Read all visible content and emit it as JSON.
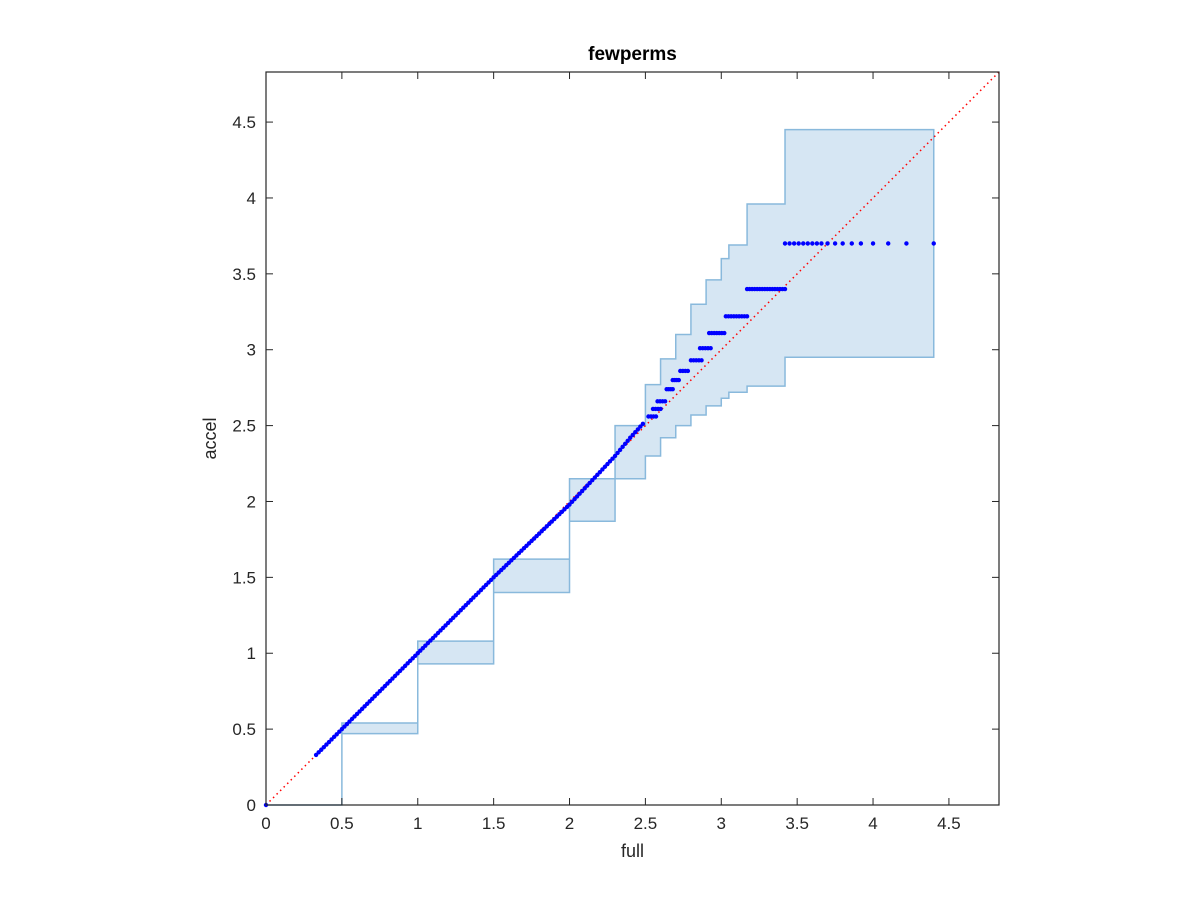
{
  "chart_data": {
    "type": "scatter",
    "title": "fewperms",
    "xlabel": "full",
    "ylabel": "accel",
    "xlim": [
      0,
      4.83
    ],
    "ylim": [
      0,
      4.83
    ],
    "xticks": [
      0,
      0.5,
      1,
      1.5,
      2,
      2.5,
      3,
      3.5,
      4,
      4.5
    ],
    "yticks": [
      0,
      0.5,
      1,
      1.5,
      2,
      2.5,
      3,
      3.5,
      4,
      4.5
    ],
    "xtick_labels": [
      "0",
      "0.5",
      "1",
      "1.5",
      "2",
      "2.5",
      "3",
      "3.5",
      "4",
      "4.5"
    ],
    "ytick_labels": [
      "0",
      "0.5",
      "1",
      "1.5",
      "2",
      "2.5",
      "3",
      "3.5",
      "4",
      "4.5"
    ],
    "grid": false,
    "box": true,
    "colors": {
      "points": "#0000ff",
      "reference_line": "#ff0000",
      "band_fill": "#d6e6f3",
      "band_edge": "#89b9dc",
      "axes": "#262626"
    },
    "reference_line": {
      "x": [
        0,
        4.83
      ],
      "y": [
        0,
        4.83
      ],
      "style": "dotted"
    },
    "confidence_band": {
      "upper": {
        "x": [
          0,
          0.5,
          1.0,
          1.5,
          2.0,
          2.3,
          2.5,
          2.6,
          2.7,
          2.8,
          2.9,
          3.0,
          3.05,
          3.17,
          3.42,
          4.4
        ],
        "y": [
          0,
          0.54,
          1.08,
          1.62,
          2.15,
          2.5,
          2.77,
          2.94,
          3.1,
          3.3,
          3.46,
          3.6,
          3.69,
          3.96,
          4.45,
          4.45
        ]
      },
      "lower": {
        "x": [
          0,
          0.5,
          1.0,
          1.5,
          2.0,
          2.3,
          2.5,
          2.6,
          2.7,
          2.8,
          2.9,
          3.0,
          3.05,
          3.17,
          3.42,
          4.4
        ],
        "y": [
          0,
          0.47,
          0.93,
          1.4,
          1.87,
          2.15,
          2.3,
          2.42,
          2.5,
          2.57,
          2.63,
          2.68,
          2.72,
          2.76,
          2.95,
          2.95
        ]
      }
    },
    "series": [
      {
        "type": "line",
        "x": [
          0,
          0.33,
          0.5,
          0.75,
          1.0,
          1.25,
          1.5,
          1.75,
          2.0,
          2.15,
          2.3,
          2.4,
          2.5
        ],
        "y": [
          0,
          0.33,
          0.5,
          0.75,
          1.0,
          1.25,
          1.5,
          1.74,
          1.98,
          2.14,
          2.3,
          2.42,
          2.53
        ]
      },
      {
        "type": "step_levels",
        "levels": [
          {
            "y": 2.56,
            "x": [
              2.52,
              2.57
            ]
          },
          {
            "y": 2.61,
            "x": [
              2.55,
              2.6
            ]
          },
          {
            "y": 2.66,
            "x": [
              2.58,
              2.63
            ]
          },
          {
            "y": 2.74,
            "x": [
              2.64,
              2.68
            ]
          },
          {
            "y": 2.8,
            "x": [
              2.68,
              2.72
            ]
          },
          {
            "y": 2.86,
            "x": [
              2.73,
              2.78
            ]
          },
          {
            "y": 2.93,
            "x": [
              2.8,
              2.87
            ]
          },
          {
            "y": 3.01,
            "x": [
              2.86,
              2.93
            ]
          },
          {
            "y": 3.11,
            "x": [
              2.92,
              3.02
            ]
          },
          {
            "y": 3.22,
            "x": [
              3.03,
              3.17
            ]
          },
          {
            "y": 3.4,
            "x": [
              3.17,
              3.42
            ]
          }
        ]
      },
      {
        "type": "points",
        "y": 3.7,
        "x": [
          3.42,
          3.45,
          3.48,
          3.51,
          3.54,
          3.57,
          3.6,
          3.63,
          3.66,
          3.7,
          3.75,
          3.8,
          3.86,
          3.92,
          4.0,
          4.1,
          4.22,
          4.4
        ]
      }
    ]
  }
}
